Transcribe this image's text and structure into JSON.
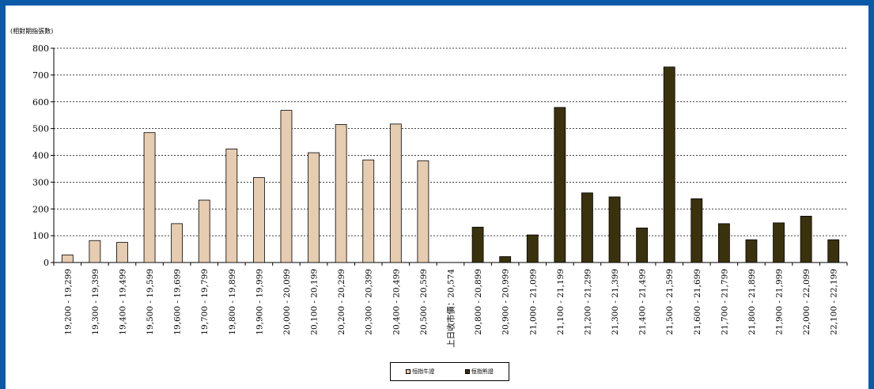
{
  "chart_data": {
    "type": "bar",
    "ylabel": "(相對期指張數)",
    "ylim": [
      0,
      800
    ],
    "yticks": [
      0,
      100,
      200,
      300,
      400,
      500,
      600,
      700,
      800
    ],
    "grid": "horizontal dashed",
    "legend_position": "bottom-center",
    "categories": [
      "19,200 - 19,299",
      "19,300 - 19,399",
      "19,400 - 19,499",
      "19,500 - 19,599",
      "19,600 - 19,699",
      "19,700 - 19,799",
      "19,800 - 19,899",
      "19,900 - 19,999",
      "20,000 - 20,099",
      "20,100 - 20,199",
      "20,200 - 20,299",
      "20,300 - 20,399",
      "20,400 - 20,499",
      "20,500 - 20,599",
      "上日收市價：20,574",
      "20,800 - 20,899",
      "20,900 - 20,999",
      "21,000 - 21,099",
      "21,100 - 21,199",
      "21,200 - 21,299",
      "21,300 - 21,399",
      "21,400 - 21,499",
      "21,500 - 21,599",
      "21,600 - 21,699",
      "21,700 - 21,799",
      "21,800 - 21,899",
      "21,900 - 21,999",
      "22,000 - 22,099",
      "22,100 - 22,199"
    ],
    "series": [
      {
        "name": "恒指牛證",
        "color": "#e6ccb0",
        "values": [
          28,
          82,
          75,
          485,
          145,
          233,
          424,
          317,
          568,
          410,
          515,
          383,
          517,
          380,
          null,
          null,
          null,
          null,
          null,
          null,
          null,
          null,
          null,
          null,
          null,
          null,
          null,
          null,
          null
        ]
      },
      {
        "name": "恒指熊證",
        "color": "#3a320d",
        "values": [
          null,
          null,
          null,
          null,
          null,
          null,
          null,
          null,
          null,
          null,
          null,
          null,
          null,
          null,
          null,
          132,
          22,
          103,
          579,
          260,
          245,
          129,
          730,
          238,
          145,
          85,
          148,
          173,
          85
        ]
      }
    ]
  }
}
